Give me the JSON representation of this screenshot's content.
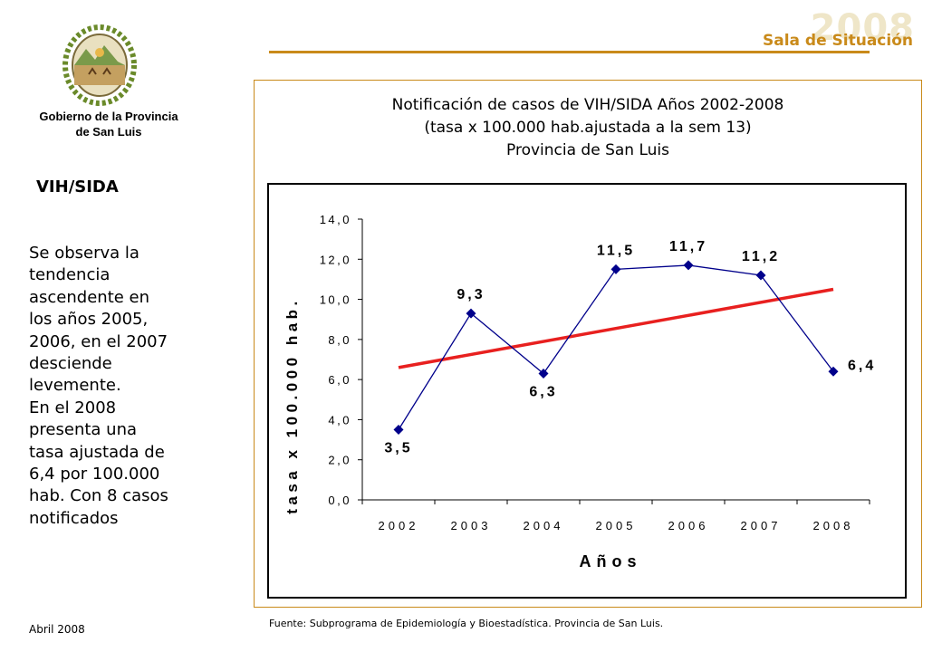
{
  "header": {
    "org_line1": "Gobierno de la Provincia",
    "org_line2": "de San Luis",
    "brand_year": "2008",
    "brand_label": "Sala de Situación"
  },
  "sidebar": {
    "section_title": "VIH/SIDA",
    "description_lines": [
      "Se observa la",
      "tendencia",
      "ascendente en",
      "los  años 2005,",
      "2006, en el 2007",
      "desciende",
      "levemente.",
      "En el 2008",
      "presenta una",
      "tasa ajustada de",
      "6,4 por 100.000",
      "hab. Con 8 casos",
      "notificados"
    ],
    "date": "Abril 2008"
  },
  "footer": {
    "source": "Fuente: Subprograma de Epidemiología y Bioestadística. Provincia de San Luis."
  },
  "colors": {
    "accent": "#c98a1a",
    "series": "#00008b",
    "trend": "#e8201f"
  },
  "chart_data": {
    "type": "line",
    "title_lines": [
      "Notificación de casos de VIH/SIDA Años 2002-2008",
      "(tasa x 100.000 hab.ajustada a la sem 13)",
      "Provincia de San Luis"
    ],
    "xlabel": "Años",
    "ylabel": "tasa x 100.000 hab.",
    "categories": [
      "2002",
      "2003",
      "2004",
      "2005",
      "2006",
      "2007",
      "2008"
    ],
    "values": [
      3.5,
      9.3,
      6.3,
      11.5,
      11.7,
      11.2,
      6.4
    ],
    "data_labels": [
      "3,5",
      "9,3",
      "6,3",
      "11,5",
      "11,7",
      "11,2",
      "6,4"
    ],
    "ylim": [
      0,
      14
    ],
    "yticks": [
      0,
      2,
      4,
      6,
      8,
      10,
      12,
      14
    ],
    "ytick_labels": [
      "0,0",
      "2,0",
      "4,0",
      "6,0",
      "8,0",
      "10,0",
      "12,0",
      "14,0"
    ],
    "trendline": {
      "start": 6.6,
      "end": 10.5
    },
    "grid": false,
    "legend": "none"
  }
}
